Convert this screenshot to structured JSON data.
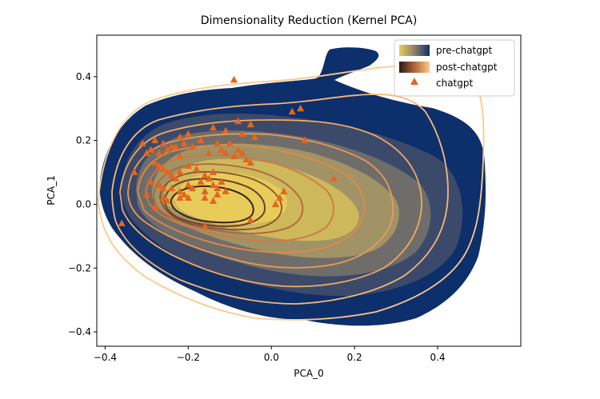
{
  "chart_data": {
    "type": "scatter",
    "title": "Dimensionality Reduction (Kernel PCA)",
    "xlabel": "PCA_0",
    "ylabel": "PCA_1",
    "xlim": [
      -0.42,
      0.6
    ],
    "ylim": [
      -0.445,
      0.53
    ],
    "xticks": [
      -0.4,
      -0.2,
      0.0,
      0.2,
      0.4
    ],
    "xtick_labels": [
      "−0.4",
      "−0.2",
      "0.0",
      "0.2",
      "0.4"
    ],
    "yticks": [
      -0.4,
      -0.2,
      0.0,
      0.2,
      0.4
    ],
    "ytick_labels": [
      "−0.4",
      "−0.2",
      "0.0",
      "0.2",
      "0.4"
    ],
    "grid": false,
    "legend_position": "top-right",
    "series": [
      {
        "name": "pre-chatgpt",
        "kind": "filled-density",
        "colormap": [
          "#0d2f6b",
          "#3b4a6a",
          "#6f6d6a",
          "#a19366",
          "#cdb85c",
          "#e8cc5a"
        ],
        "center": [
          -0.1,
          0.0
        ],
        "extent_x": [
          -0.42,
          0.5
        ],
        "extent_y": [
          -0.41,
          0.5
        ]
      },
      {
        "name": "post-chatgpt",
        "kind": "density-contours",
        "colormap": [
          "#fcc98a",
          "#f5a860",
          "#e08a4a",
          "#b0643a",
          "#6e3f28",
          "#2b1a14"
        ],
        "center": [
          -0.16,
          0.0
        ]
      },
      {
        "name": "chatgpt",
        "kind": "scatter",
        "marker": "triangle",
        "color": "#e2661f",
        "x": [
          -0.09,
          0.05,
          0.07,
          -0.05,
          -0.08,
          -0.14,
          -0.11,
          -0.07,
          -0.04,
          0.08,
          -0.2,
          -0.22,
          -0.28,
          -0.31,
          -0.26,
          -0.24,
          -0.29,
          -0.3,
          -0.27,
          -0.25,
          -0.23,
          -0.22,
          -0.21,
          -0.19,
          -0.17,
          -0.15,
          -0.13,
          -0.12,
          -0.11,
          -0.1,
          -0.09,
          -0.08,
          -0.07,
          -0.06,
          -0.05,
          -0.28,
          -0.27,
          -0.26,
          -0.25,
          -0.24,
          -0.23,
          -0.22,
          -0.2,
          -0.18,
          -0.16,
          -0.15,
          -0.14,
          -0.12,
          -0.29,
          -0.27,
          -0.26,
          -0.24,
          -0.22,
          -0.2,
          -0.19,
          -0.17,
          -0.16,
          -0.14,
          -0.13,
          -0.11,
          -0.33,
          -0.3,
          -0.26,
          -0.25,
          -0.21,
          -0.2,
          -0.16,
          -0.14,
          -0.13,
          -0.11,
          -0.36,
          -0.28,
          -0.22,
          -0.05,
          0.02,
          0.01,
          0.15,
          -0.16,
          0.03
        ],
        "y": [
          0.39,
          0.29,
          0.3,
          0.25,
          0.26,
          0.24,
          0.23,
          0.22,
          0.21,
          0.2,
          0.22,
          0.21,
          0.2,
          0.19,
          0.19,
          0.18,
          0.17,
          0.16,
          0.16,
          0.17,
          0.18,
          0.15,
          0.19,
          0.18,
          0.2,
          0.16,
          0.19,
          0.17,
          0.16,
          0.19,
          0.15,
          0.17,
          0.16,
          0.14,
          0.13,
          0.13,
          0.12,
          0.11,
          0.1,
          0.09,
          0.08,
          0.1,
          0.12,
          0.11,
          0.09,
          0.08,
          0.1,
          0.07,
          0.07,
          0.06,
          0.05,
          0.05,
          0.04,
          0.06,
          0.05,
          0.07,
          0.04,
          0.06,
          0.05,
          0.04,
          0.1,
          0.03,
          0.02,
          0.01,
          0.03,
          0.02,
          0.02,
          0.01,
          0.03,
          0.04,
          -0.06,
          -0.01,
          0.02,
          -0.05,
          0.02,
          0.0,
          0.08,
          -0.07,
          0.04
        ]
      }
    ]
  }
}
